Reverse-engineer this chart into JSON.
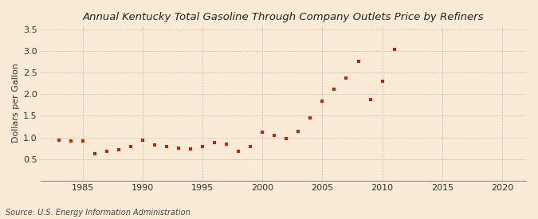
{
  "title": "Annual Kentucky Total Gasoline Through Company Outlets Price by Refiners",
  "ylabel": "Dollars per Gallon",
  "source": "Source: U.S. Energy Information Administration",
  "background_color": "#faebd7",
  "plot_background": "#faebd7",
  "marker_color": "#cc2200",
  "xlim": [
    1981.5,
    2022
  ],
  "ylim": [
    0.0,
    3.6
  ],
  "xticks": [
    1985,
    1990,
    1995,
    2000,
    2005,
    2010,
    2015,
    2020
  ],
  "yticks": [
    0.5,
    1.0,
    1.5,
    2.0,
    2.5,
    3.0,
    3.5
  ],
  "years": [
    1983,
    1984,
    1985,
    1986,
    1987,
    1988,
    1989,
    1990,
    1991,
    1992,
    1993,
    1994,
    1995,
    1996,
    1997,
    1998,
    1999,
    2000,
    2001,
    2002,
    2003,
    2004,
    2005,
    2006,
    2007,
    2008,
    2009,
    2010,
    2011
  ],
  "values": [
    0.94,
    0.91,
    0.91,
    0.62,
    0.67,
    0.72,
    0.78,
    0.93,
    0.82,
    0.78,
    0.75,
    0.74,
    0.78,
    0.88,
    0.85,
    0.67,
    0.79,
    1.12,
    1.05,
    0.98,
    1.14,
    1.45,
    1.85,
    2.12,
    2.38,
    2.77,
    1.88,
    2.3,
    3.04
  ],
  "title_fontsize": 9.5,
  "label_fontsize": 8,
  "source_fontsize": 7,
  "tick_fontsize": 8,
  "marker_size": 12
}
